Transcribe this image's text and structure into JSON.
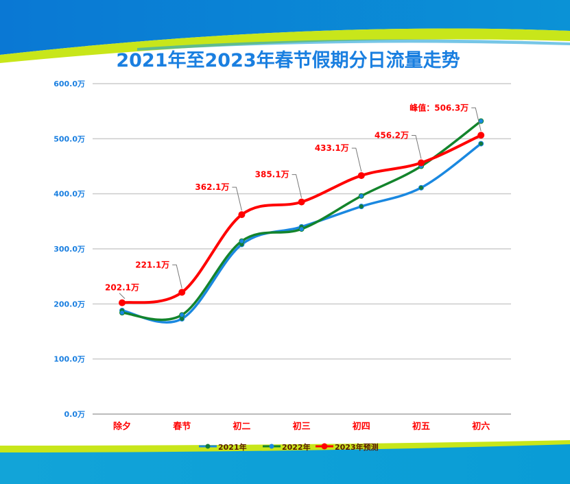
{
  "chart_data": {
    "type": "line",
    "title": "2021年至2023年春节假期分日流量走势",
    "categories": [
      "除夕",
      "春节",
      "初二",
      "初三",
      "初四",
      "初五",
      "初六"
    ],
    "ylim": [
      0,
      600
    ],
    "yticks": [
      0,
      100,
      200,
      300,
      400,
      500,
      600
    ],
    "ytick_labels": [
      "0.0万",
      "100.0万",
      "200.0万",
      "300.0万",
      "400.0万",
      "500.0万",
      "600.0万"
    ],
    "grid": true,
    "legend_position": "bottom",
    "series": [
      {
        "name": "2021年",
        "color": "#1a88e0",
        "marker": "#137a3a",
        "values": [
          188,
          173,
          308,
          340,
          377,
          411,
          491
        ]
      },
      {
        "name": "2022年",
        "color": "#13842c",
        "marker": "#1a88e0",
        "values": [
          184,
          180,
          314,
          336,
          396,
          450,
          532
        ]
      },
      {
        "name": "2023年预测",
        "color": "#ff0000",
        "marker": "#ff0000",
        "values": [
          202.1,
          221.1,
          362.1,
          385.1,
          433.1,
          456.2,
          506.3
        ],
        "labels": [
          "202.1万",
          "221.1万",
          "362.1万",
          "385.1万",
          "433.1万",
          "456.2万",
          "峰值：506.3万"
        ]
      }
    ]
  }
}
